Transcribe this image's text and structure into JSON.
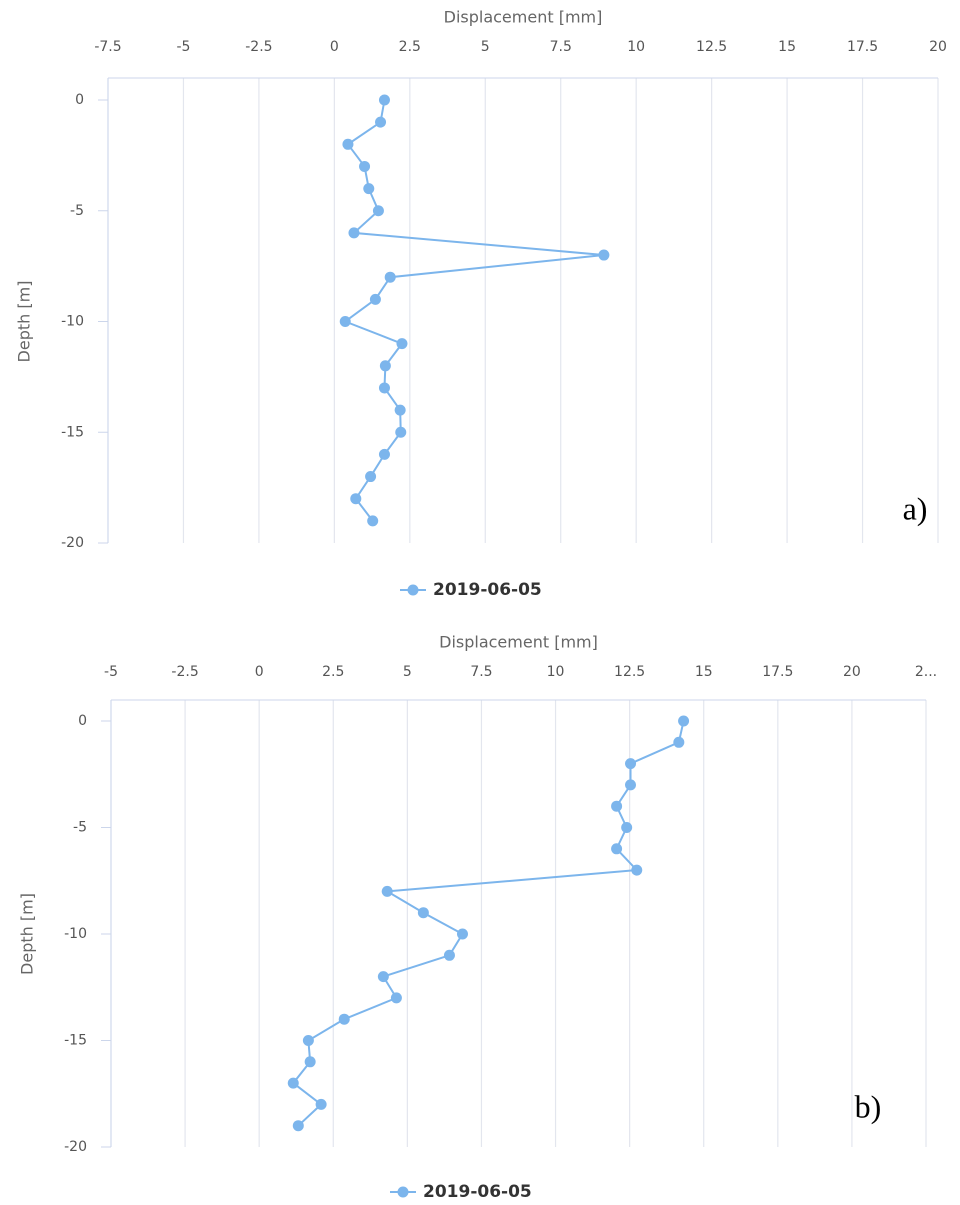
{
  "chart_data": [
    {
      "type": "line",
      "x_label": "Displacement [mm]",
      "y_label": "Depth [m]",
      "annotation": "a)",
      "grid": true,
      "legend": "bottom",
      "xlim": [
        -7.5,
        20
      ],
      "xticks": [
        -7.5,
        -5,
        -2.5,
        0,
        2.5,
        5,
        7.5,
        10,
        12.5,
        15,
        17.5,
        20
      ],
      "ylim": [
        -20,
        0
      ],
      "yticks": [
        0,
        -5,
        -10,
        -15,
        -20
      ],
      "series": [
        {
          "name": "2019-06-05",
          "color": "#7cb5ec",
          "x": [
            1.66,
            1.53,
            0.45,
            1.0,
            1.14,
            1.46,
            0.65,
            8.93,
            1.85,
            1.36,
            0.36,
            2.24,
            1.69,
            1.66,
            2.18,
            2.2,
            1.66,
            1.2,
            0.71,
            1.27
          ],
          "y": [
            0,
            -1,
            -2,
            -3,
            -4,
            -5,
            -6,
            -7,
            -8,
            -9,
            -10,
            -11,
            -12,
            -13,
            -14,
            -15,
            -16,
            -17,
            -18,
            -19
          ]
        }
      ]
    },
    {
      "type": "line",
      "x_label": "Displacement [mm]",
      "y_label": "Depth [m]",
      "annotation": "b)",
      "grid": true,
      "legend": "bottom",
      "xlim": [
        -5,
        22.5
      ],
      "xticks": [
        -5,
        -2.5,
        0,
        2.5,
        5,
        7.5,
        10,
        12.5,
        15,
        17.5,
        20,
        {
          "value": 22.5,
          "label": "2..."
        }
      ],
      "ylim": [
        -20,
        0
      ],
      "yticks": [
        0,
        -5,
        -10,
        -15,
        -20
      ],
      "series": [
        {
          "name": "2019-06-05",
          "color": "#7cb5ec",
          "x": [
            14.32,
            14.16,
            12.53,
            12.53,
            12.06,
            12.4,
            12.06,
            12.74,
            4.32,
            5.54,
            6.86,
            6.42,
            4.19,
            4.63,
            2.87,
            1.66,
            1.72,
            1.15,
            2.09,
            1.32
          ],
          "y": [
            0,
            -1,
            -2,
            -3,
            -4,
            -5,
            -6,
            -7,
            -8,
            -9,
            -10,
            -11,
            -12,
            -13,
            -14,
            -15,
            -16,
            -17,
            -18,
            -19
          ]
        }
      ]
    }
  ]
}
